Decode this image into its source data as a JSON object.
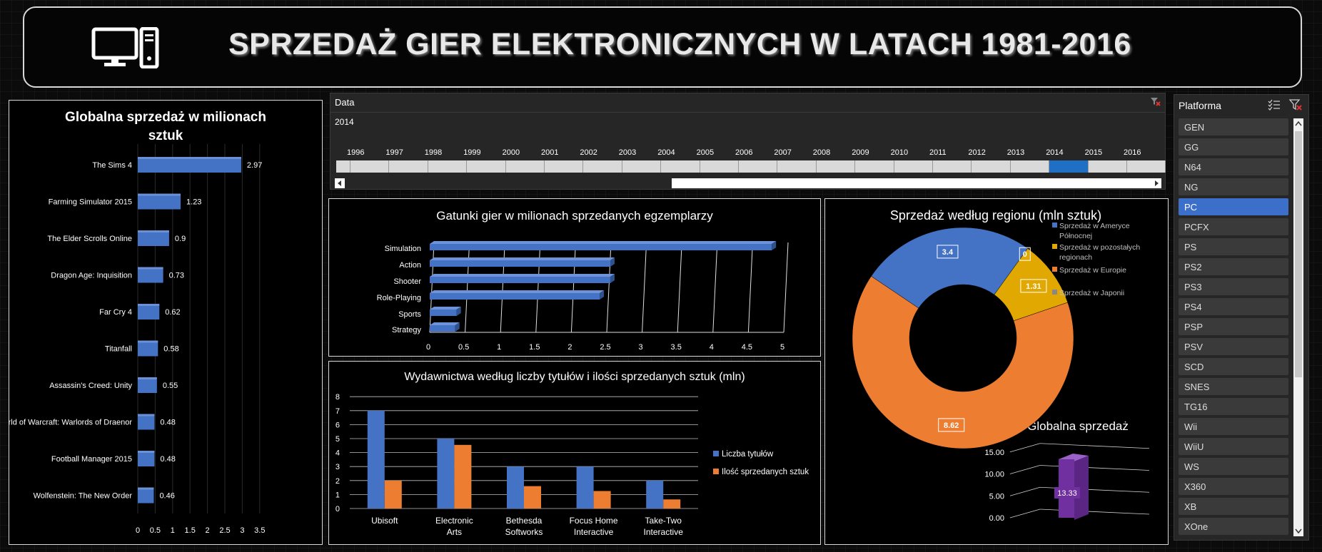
{
  "page": {
    "title": "SPRZEDAŻ GIER ELEKTRONICZNYCH W LATACH 1981-2016",
    "icon": "computer-icon"
  },
  "timeline": {
    "header": "Data",
    "selected_label": "2014",
    "years": [
      "1996",
      "1997",
      "1998",
      "1999",
      "2000",
      "2001",
      "2002",
      "2003",
      "2004",
      "2005",
      "2006",
      "2007",
      "2008",
      "2009",
      "2010",
      "2011",
      "2012",
      "2013",
      "2014",
      "2015",
      "2016"
    ],
    "selected_year": "2014",
    "clear_icon": "clear-filter-icon"
  },
  "platform_slicer": {
    "header": "Platforma",
    "items": [
      "GEN",
      "GG",
      "N64",
      "NG",
      "PC",
      "PCFX",
      "PS",
      "PS2",
      "PS3",
      "PS4",
      "PSP",
      "PSV",
      "SCD",
      "SNES",
      "TG16",
      "Wii",
      "WiiU",
      "WS",
      "X360",
      "XB",
      "XOne"
    ],
    "selected": "PC",
    "icons": [
      "multi-select-icon",
      "clear-filter-icon"
    ]
  },
  "colors": {
    "blue": "#4472c4",
    "orange": "#ed7d31",
    "gold": "#e0a800",
    "gray": "#888888",
    "purple": "#7030a0",
    "selected": "#3c6fc9"
  },
  "chart_data": [
    {
      "id": "global-sales",
      "type": "bar",
      "title": "Globalna sprzedaż w milionach sztuk",
      "categories": [
        "The Sims 4",
        "Farming Simulator 2015",
        "The Elder Scrolls Online",
        "Dragon Age: Inquisition",
        "Far Cry 4",
        "Titanfall",
        "Assassin's Creed: Unity",
        "World of Warcraft: Warlords of Draenor",
        "Football Manager 2015",
        "Wolfenstein: The New Order"
      ],
      "values": [
        2.97,
        1.23,
        0.9,
        0.73,
        0.62,
        0.58,
        0.55,
        0.48,
        0.48,
        0.46
      ],
      "xlim": [
        0,
        3.5
      ],
      "xticks": [
        "0",
        "0.5",
        "1",
        "1.5",
        "2",
        "2.5",
        "3",
        "3.5"
      ]
    },
    {
      "id": "genres",
      "type": "bar",
      "title": "Gatunki gier w milionach sprzedanych egzemplarzy",
      "categories": [
        "Simulation",
        "Action",
        "Shooter",
        "Role-Playing",
        "Sports",
        "Strategy"
      ],
      "values": [
        4.83,
        2.55,
        2.55,
        2.4,
        0.38,
        0.36
      ],
      "xlim": [
        0,
        5
      ],
      "xticks": [
        "0",
        "0.5",
        "1",
        "1.5",
        "2",
        "2.5",
        "3",
        "3.5",
        "4",
        "4.5",
        "5"
      ]
    },
    {
      "id": "publishers",
      "type": "bar",
      "title": "Wydawnictwa według liczby tytułów i ilości sprzedanych sztuk (mln)",
      "categories": [
        "Ubisoft",
        "Electronic Arts",
        "Bethesda Softworks",
        "Focus Home Interactive",
        "Take-Two Interactive"
      ],
      "series": [
        {
          "name": "Liczba tytułów",
          "values": [
            7,
            5,
            3,
            3,
            2
          ]
        },
        {
          "name": "Ilość sprzedanych sztuk",
          "values": [
            2,
            4.55,
            1.6,
            1.25,
            0.65
          ]
        }
      ],
      "ylim": [
        0,
        8
      ],
      "yticks": [
        "0",
        "1",
        "2",
        "3",
        "4",
        "5",
        "6",
        "7",
        "8"
      ]
    },
    {
      "id": "regions",
      "type": "pie",
      "title": "Sprzedaż według regionu (mln sztuk)",
      "categories": [
        "Sprzedaż w Ameryce Północnej",
        "Sprzedaż w pozostałych regionach",
        "Sprzedaż w Europie",
        "Sprzedaż w Japonii"
      ],
      "values": [
        3.4,
        1.31,
        8.62,
        0
      ],
      "labels": [
        "3.4",
        "1.31",
        "8.62",
        "0"
      ]
    },
    {
      "id": "global-total",
      "type": "bar",
      "title": "Globalna sprzedaż",
      "categories": [
        ""
      ],
      "values": [
        13.33
      ],
      "value_label": "13.33",
      "ylim": [
        0,
        15
      ],
      "yticks": [
        "0.00",
        "5.00",
        "10.00",
        "15.00"
      ]
    }
  ]
}
